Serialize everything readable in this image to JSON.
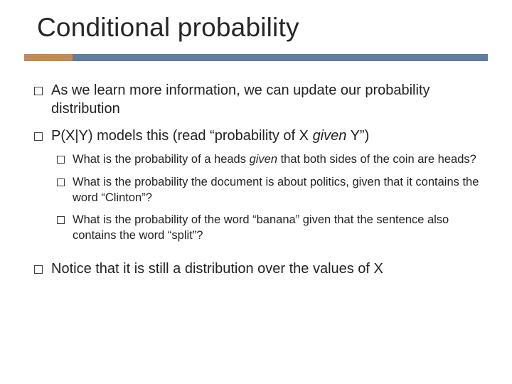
{
  "colors": {
    "accent_left": "#c08a5a",
    "accent_right": "#5f7ea0",
    "background": "#ffffff",
    "text": "#222222",
    "bullet_border": "#404040"
  },
  "title": "Conditional probability",
  "bullets": [
    {
      "parts": [
        {
          "text": "As we learn more information, we can update our probability distribution",
          "italic": false
        }
      ],
      "children": []
    },
    {
      "parts": [
        {
          "text": "P(X|Y) models this (read “probability of X ",
          "italic": false
        },
        {
          "text": "given",
          "italic": true
        },
        {
          "text": " Y”)",
          "italic": false
        }
      ],
      "children": [
        {
          "parts": [
            {
              "text": "What is the probability of a heads ",
              "italic": false
            },
            {
              "text": "given",
              "italic": true
            },
            {
              "text": " that both sides of the coin are heads?",
              "italic": false
            }
          ]
        },
        {
          "parts": [
            {
              "text": "What is the probability the document is about politics, given that it contains the word “Clinton”?",
              "italic": false
            }
          ]
        },
        {
          "parts": [
            {
              "text": "What is the probability of the word “banana” given that the sentence also contains the word “split”?",
              "italic": false
            }
          ]
        }
      ]
    },
    {
      "spacer_before": true,
      "parts": [
        {
          "text": "Notice that it is still a distribution over the values of X",
          "italic": false
        }
      ],
      "children": []
    }
  ]
}
